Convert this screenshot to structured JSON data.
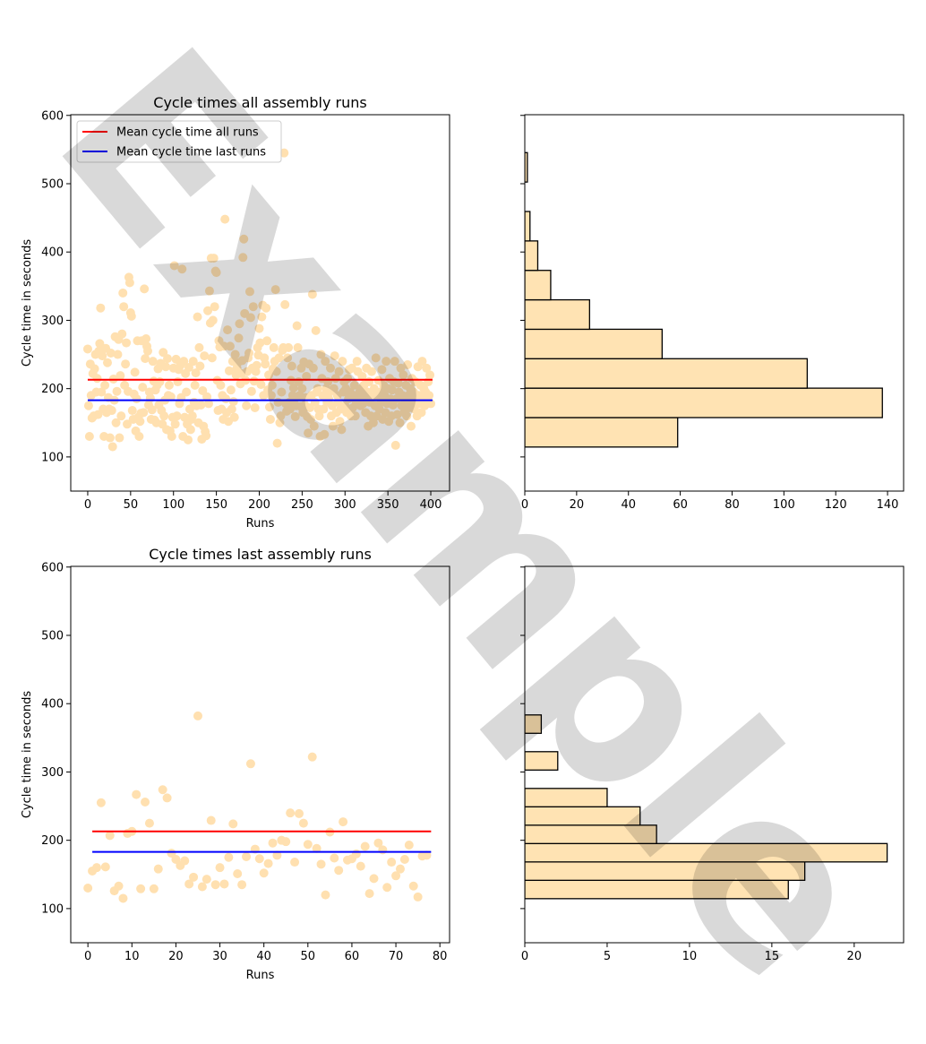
{
  "watermark": "Example",
  "colors": {
    "point": "#ffe0b0",
    "bar": "#ffe3b3",
    "bar_edge": "#000000",
    "mean_all": "#ff0000",
    "mean_last": "#0000ff"
  },
  "chart_data": [
    {
      "id": "scatter_all",
      "type": "scatter",
      "title": "Cycle times all assembly runs",
      "xlabel": "Runs",
      "ylabel": "Cycle time in seconds",
      "xlim": [
        -19.8,
        421.9
      ],
      "ylim": [
        50,
        601
      ],
      "xticks": [
        0,
        50,
        100,
        150,
        200,
        250,
        300,
        350,
        400
      ],
      "yticks": [
        100,
        200,
        300,
        400,
        500,
        600
      ],
      "legend": {
        "placement": "top-left",
        "entries": [
          "Mean cycle time all runs",
          "Mean cycle time last runs"
        ]
      },
      "mean_all": {
        "value": 213,
        "x_range": [
          0,
          402
        ]
      },
      "mean_last": {
        "value": 183,
        "x_range": [
          0,
          402
        ]
      },
      "y": [
        258,
        175,
        130,
        236,
        190,
        157,
        222,
        160,
        229,
        250,
        195,
        215,
        162,
        255,
        266,
        318,
        195,
        248,
        170,
        130,
        205,
        259,
        165,
        238,
        187,
        170,
        128,
        252,
        168,
        115,
        214,
        183,
        276,
        150,
        196,
        250,
        272,
        128,
        219,
        160,
        280,
        340,
        320,
        205,
        236,
        267,
        148,
        196,
        363,
        355,
        311,
        306,
        168,
        155,
        192,
        224,
        138,
        185,
        270,
        158,
        130,
        152,
        164,
        270,
        202,
        165,
        346,
        244,
        273,
        262,
        255,
        176,
        195,
        186,
        155,
        169,
        240,
        211,
        154,
        198,
        150,
        205,
        229,
        176,
        210,
        237,
        168,
        148,
        253,
        160,
        183,
        232,
        140,
        244,
        190,
        205,
        138,
        188,
        130,
        158,
        230,
        380,
        148,
        243,
        160,
        210,
        228,
        178,
        234,
        187,
        375,
        130,
        240,
        158,
        222,
        195,
        148,
        125,
        231,
        170,
        140,
        155,
        160,
        240,
        180,
        205,
        223,
        175,
        305,
        150,
        260,
        233,
        176,
        126,
        197,
        145,
        248,
        137,
        131,
        188,
        314,
        178,
        343,
        296,
        391,
        245,
        300,
        391,
        320,
        372,
        370,
        212,
        168,
        270,
        261,
        205,
        170,
        190,
        155,
        262,
        448,
        185,
        165,
        286,
        152,
        226,
        262,
        198,
        170,
        240,
        181,
        158,
        250,
        220,
        230,
        238,
        274,
        295,
        207,
        222,
        241,
        392,
        419,
        310,
        212,
        175,
        225,
        245,
        252,
        342,
        304,
        196,
        230,
        320,
        211,
        172,
        225,
        234,
        260,
        249,
        288,
        267,
        206,
        305,
        322,
        190,
        245,
        236,
        318,
        270,
        198,
        220,
        173,
        155,
        190,
        205,
        229,
        260,
        240,
        345,
        225,
        120,
        180,
        245,
        150,
        160,
        195,
        256,
        260,
        545,
        323,
        178,
        167,
        245,
        260,
        180,
        170,
        212,
        233,
        190,
        201,
        185,
        159,
        175,
        292,
        260,
        210,
        190,
        174,
        230,
        200,
        165,
        239,
        176,
        187,
        218,
        159,
        135,
        236,
        172,
        155,
        190,
        338,
        230,
        145,
        180,
        285,
        195,
        200,
        170,
        160,
        130,
        250,
        215,
        190,
        170,
        133,
        240,
        200,
        180,
        210,
        185,
        195,
        230,
        160,
        175,
        145,
        200,
        248,
        215,
        165,
        190,
        180,
        225,
        152,
        170,
        140,
        240,
        195,
        210,
        175,
        200,
        165,
        215,
        185,
        228,
        195,
        160,
        230,
        172,
        190,
        205,
        160,
        180,
        240,
        225,
        183,
        195,
        175,
        200,
        218,
        178,
        205,
        190,
        165,
        230,
        195,
        145,
        210,
        180,
        160,
        225,
        188,
        150,
        200,
        175,
        245,
        160,
        190,
        212,
        170,
        195,
        180,
        228,
        155,
        205,
        190,
        165,
        240,
        178,
        200,
        152,
        215,
        185,
        160,
        198,
        176,
        210,
        240,
        117,
        185,
        162,
        208,
        195,
        150,
        230,
        175,
        190,
        220,
        165,
        180,
        205,
        160,
        235,
        190,
        172,
        200,
        145,
        215,
        180,
        195,
        170,
        210,
        185,
        160,
        232,
        190,
        178,
        205,
        165,
        240,
        185,
        200,
        175,
        195,
        230,
        180,
        210,
        190,
        220,
        178
      ]
    },
    {
      "id": "hist_all",
      "type": "bar",
      "orientation": "horizontal",
      "xlim": [
        0,
        146.2
      ],
      "ylim": [
        50,
        601
      ],
      "xticks": [
        0,
        20,
        40,
        60,
        80,
        100,
        120,
        140
      ],
      "yticks": [
        100,
        200,
        300,
        400,
        500,
        600
      ],
      "bin_edges": [
        114.5,
        157.6,
        200.7,
        243.8,
        286.9,
        330.0,
        373.1,
        416.2,
        459.3,
        502.4,
        545.5
      ],
      "counts": [
        59,
        138,
        109,
        53,
        25,
        10,
        5,
        2,
        0,
        1
      ]
    },
    {
      "id": "scatter_last",
      "type": "scatter",
      "title": "Cycle times last assembly runs",
      "xlabel": "Runs",
      "ylabel": "Cycle time in seconds",
      "xlim": [
        -3.9,
        82.2
      ],
      "ylim": [
        50,
        601
      ],
      "xticks": [
        0,
        10,
        20,
        30,
        40,
        50,
        60,
        70,
        80
      ],
      "yticks": [
        100,
        200,
        300,
        400,
        500,
        600
      ],
      "mean_all": {
        "value": 213,
        "x_range": [
          1,
          78
        ]
      },
      "mean_last": {
        "value": 183,
        "x_range": [
          1,
          78
        ]
      },
      "y": [
        130,
        155,
        160,
        255,
        161,
        207,
        126,
        133,
        115,
        210,
        213,
        267,
        129,
        256,
        225,
        129,
        158,
        274,
        262,
        181,
        172,
        163,
        170,
        136,
        146,
        382,
        132,
        143,
        229,
        135,
        160,
        136,
        175,
        224,
        151,
        135,
        176,
        312,
        187,
        173,
        152,
        166,
        196,
        178,
        200,
        198,
        240,
        168,
        239,
        225,
        194,
        322,
        188,
        165,
        120,
        212,
        174,
        156,
        227,
        171,
        173,
        180,
        162,
        191,
        122,
        144,
        196,
        186,
        131,
        168,
        148,
        158,
        172,
        193,
        133,
        117,
        177,
        178
      ]
    },
    {
      "id": "hist_last",
      "type": "bar",
      "orientation": "horizontal",
      "xlim": [
        0,
        23.0
      ],
      "ylim": [
        50,
        601
      ],
      "xticks": [
        0,
        5,
        10,
        15,
        20
      ],
      "yticks": [
        100,
        200,
        300,
        400,
        500,
        600
      ],
      "bin_edges": [
        114.5,
        141.4,
        168.3,
        195.2,
        222.1,
        249.0,
        275.9,
        302.8,
        329.7,
        356.6,
        383.5
      ],
      "counts": [
        16,
        17,
        22,
        8,
        7,
        5,
        0,
        2,
        0,
        1
      ]
    }
  ]
}
